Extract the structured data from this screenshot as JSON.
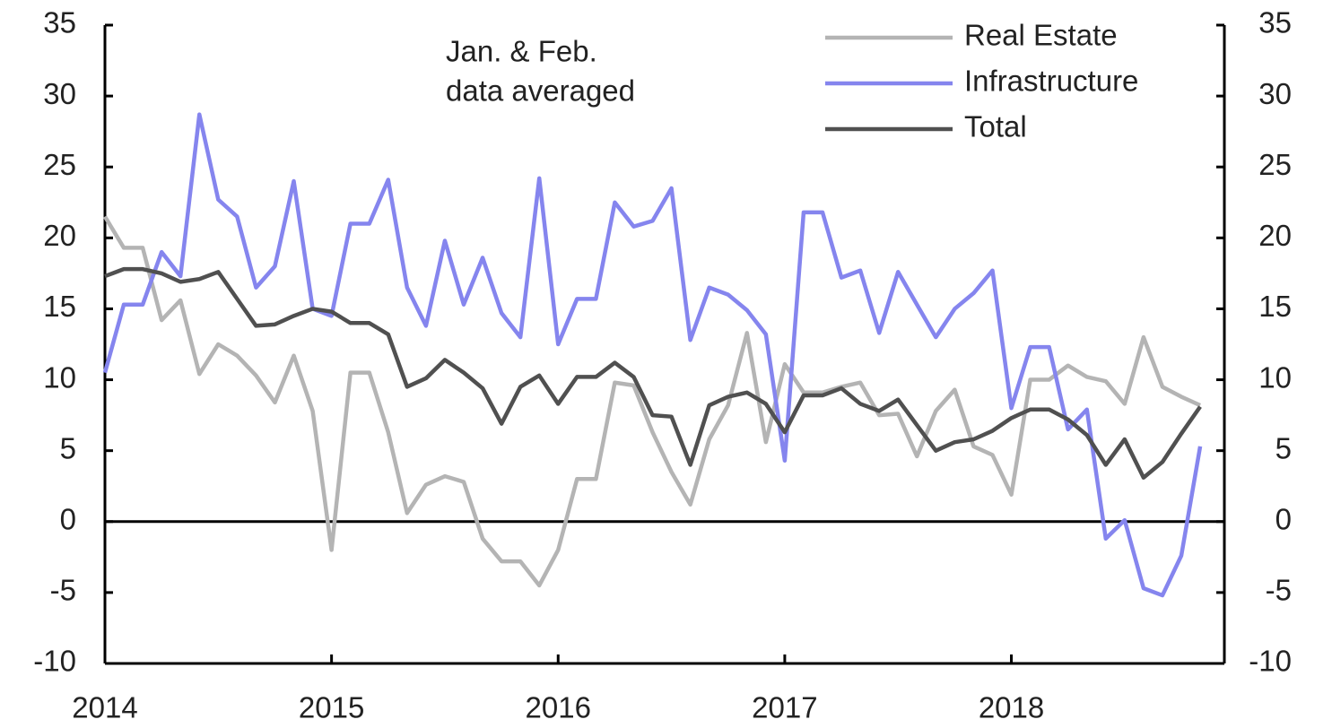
{
  "chart_data": {
    "type": "line",
    "annotation": [
      "Jan. & Feb.",
      "data averaged"
    ],
    "x": [
      2014,
      2014.0833,
      2014.1667,
      2014.25,
      2014.3333,
      2014.4167,
      2014.5,
      2014.5833,
      2014.6667,
      2014.75,
      2014.8333,
      2014.9167,
      2015,
      2015.0833,
      2015.1667,
      2015.25,
      2015.3333,
      2015.4167,
      2015.5,
      2015.5833,
      2015.6667,
      2015.75,
      2015.8333,
      2015.9167,
      2016,
      2016.0833,
      2016.1667,
      2016.25,
      2016.3333,
      2016.4167,
      2016.5,
      2016.5833,
      2016.6667,
      2016.75,
      2016.8333,
      2016.9167,
      2017,
      2017.0833,
      2017.1667,
      2017.25,
      2017.3333,
      2017.4167,
      2017.5,
      2017.5833,
      2017.6667,
      2017.75,
      2017.8333,
      2017.9167,
      2018,
      2018.0833,
      2018.1667,
      2018.25,
      2018.3333,
      2018.4167,
      2018.5,
      2018.5833,
      2018.6667,
      2018.75,
      2018.8333
    ],
    "series": [
      {
        "name": "Real Estate",
        "color": "#b4b4b4",
        "values": [
          21.5,
          19.3,
          19.3,
          14.2,
          15.6,
          10.4,
          12.5,
          11.7,
          10.3,
          8.4,
          11.7,
          7.8,
          -2,
          10.5,
          10.5,
          6.3,
          0.6,
          2.6,
          3.2,
          2.8,
          -1.2,
          -2.8,
          -2.8,
          -4.5,
          -2,
          3,
          3,
          9.8,
          9.6,
          6.3,
          3.5,
          1.2,
          5.8,
          8.2,
          13.3,
          5.6,
          11.1,
          9.1,
          9.1,
          9.5,
          9.8,
          7.5,
          7.6,
          4.6,
          7.8,
          9.3,
          5.3,
          4.7,
          1.9,
          10,
          10,
          11,
          10.2,
          9.9,
          8.3,
          13,
          9.5,
          8.8,
          8.2
        ]
      },
      {
        "name": "Infrastructure",
        "color": "#8585ee",
        "values": [
          10.5,
          15.3,
          15.3,
          19,
          17.3,
          28.7,
          22.7,
          21.5,
          16.5,
          18,
          24,
          15,
          14.5,
          21,
          21,
          24.1,
          16.5,
          13.8,
          19.8,
          15.3,
          18.6,
          14.7,
          13,
          24.2,
          12.5,
          15.7,
          15.7,
          22.5,
          20.8,
          21.2,
          23.5,
          12.8,
          16.5,
          16,
          14.9,
          13.2,
          4.3,
          21.8,
          21.8,
          17.2,
          17.7,
          13.3,
          17.6,
          15.3,
          13,
          15,
          16.1,
          17.7,
          8,
          12.3,
          12.3,
          6.5,
          7.9,
          -1.2,
          0.1,
          -4.7,
          -5.2,
          -2.4,
          5.3
        ]
      },
      {
        "name": "Total",
        "color": "#505050",
        "values": [
          17.3,
          17.8,
          17.8,
          17.5,
          16.9,
          17.1,
          17.6,
          15.7,
          13.8,
          13.9,
          14.5,
          15,
          14.8,
          14,
          14,
          13.2,
          9.5,
          10.1,
          11.4,
          10.5,
          9.4,
          6.9,
          9.5,
          10.3,
          8.3,
          10.2,
          10.2,
          11.2,
          10.2,
          7.5,
          7.4,
          4,
          8.2,
          8.8,
          9.1,
          8.3,
          6.3,
          8.9,
          8.9,
          9.4,
          8.3,
          7.8,
          8.6,
          6.8,
          5,
          5.6,
          5.8,
          6.4,
          7.3,
          7.9,
          7.9,
          7.2,
          6.1,
          4,
          5.8,
          3.1,
          4.2,
          6.2,
          8.1
        ]
      }
    ],
    "xlim": [
      2014,
      2018.94
    ],
    "xticks": [
      2014,
      2015,
      2016,
      2017,
      2018
    ],
    "ylim": [
      -10,
      35
    ],
    "yticks": [
      -10,
      -5,
      0,
      5,
      10,
      15,
      20,
      25,
      30,
      35
    ],
    "y2lim": [
      -10,
      35
    ],
    "y2ticks": [
      -10,
      -5,
      0,
      5,
      10,
      15,
      20,
      25,
      30,
      35
    ],
    "legend": "upper right"
  }
}
